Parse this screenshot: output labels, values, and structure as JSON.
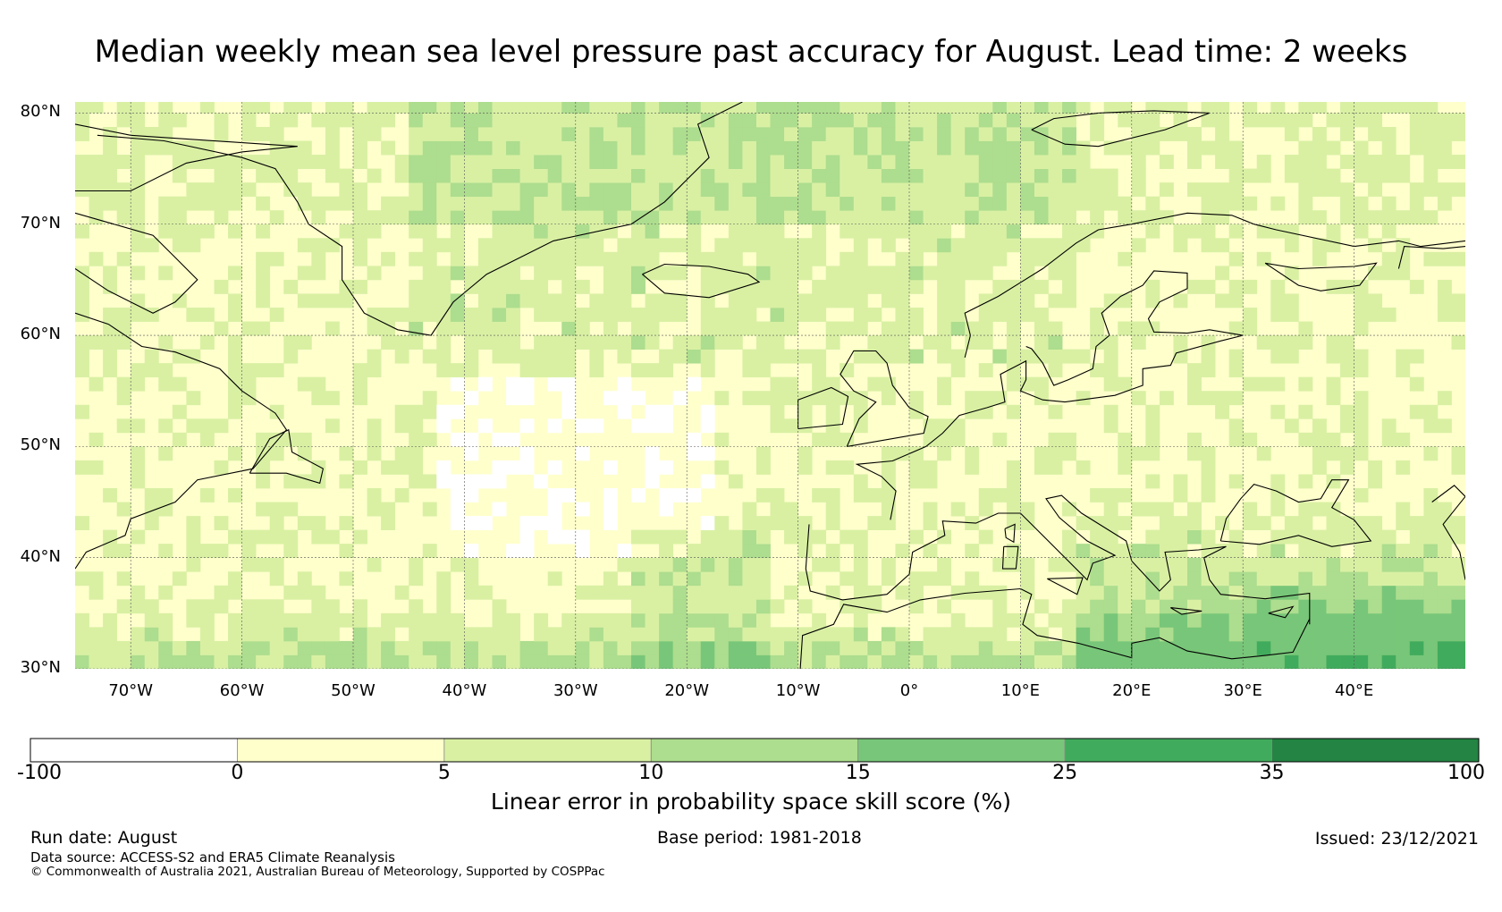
{
  "title": "Median weekly mean sea level pressure past accuracy for August. Lead time: 2 weeks",
  "map": {
    "lat_labels": [
      "80°N",
      "70°N",
      "60°N",
      "50°N",
      "40°N",
      "30°N"
    ],
    "lat_values": [
      80,
      70,
      60,
      50,
      40,
      30
    ],
    "lon_labels": [
      "70°W",
      "60°W",
      "50°W",
      "40°W",
      "30°W",
      "20°W",
      "10°W",
      "0°",
      "10°E",
      "20°E",
      "30°E",
      "40°E"
    ],
    "lon_values": [
      -70,
      -60,
      -50,
      -40,
      -30,
      -20,
      -10,
      0,
      10,
      20,
      30,
      40
    ],
    "extent": {
      "lon_min": -75,
      "lon_max": 50,
      "lat_min": 30,
      "lat_max": 81
    }
  },
  "colorbar": {
    "bounds": [
      "-100",
      "0",
      "5",
      "10",
      "15",
      "25",
      "35",
      "100"
    ],
    "colors": [
      "#ffffff",
      "#ffffcc",
      "#d9f0a3",
      "#addd8e",
      "#78c679",
      "#41ab5d",
      "#238443"
    ],
    "label": "Linear error in probability space skill score (%)"
  },
  "footer": {
    "run_date": "Run date: August",
    "base_period": "Base period: 1981-2018",
    "issued": "Issued: 23/12/2021",
    "data_source": "Data source: ACCESS-S2 and ERA5 Climate Reanalysis",
    "copyright": "© Commonwealth of Australia 2021, Australian Bureau of Meteorology, Supported by COSPPac"
  }
}
